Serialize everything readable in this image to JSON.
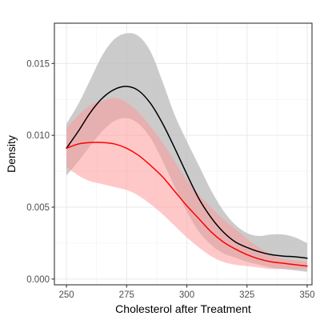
{
  "chart_data": {
    "type": "line",
    "title": "",
    "xlabel": "Cholesterol after Treatment",
    "ylabel": "Density",
    "xlim": [
      245,
      352
    ],
    "ylim": [
      -0.0004,
      0.0178
    ],
    "x_ticks": [
      250,
      275,
      300,
      325,
      350
    ],
    "x_tick_labels": [
      "250",
      "275",
      "300",
      "325",
      "350"
    ],
    "y_ticks": [
      0.0,
      0.005,
      0.01,
      0.015
    ],
    "y_tick_labels": [
      "0.000",
      "0.005",
      "0.010",
      "0.015"
    ],
    "grid": true,
    "legend": "none",
    "series": [
      {
        "color": "#000000",
        "band_color": "#bebebe",
        "x": [
          250,
          255,
          260,
          265,
          270,
          275,
          280,
          285,
          290,
          295,
          300,
          305,
          310,
          315,
          320,
          325,
          330,
          335,
          340,
          345,
          350
        ],
        "y": [
          0.0091,
          0.0103,
          0.0116,
          0.0126,
          0.0132,
          0.0134,
          0.0131,
          0.0122,
          0.0108,
          0.0091,
          0.0073,
          0.0056,
          0.0043,
          0.0033,
          0.0026,
          0.0022,
          0.0019,
          0.0017,
          0.0016,
          0.00155,
          0.00145
        ],
        "lower": [
          0.0072,
          0.0082,
          0.0093,
          0.0103,
          0.011,
          0.0112,
          0.0108,
          0.0098,
          0.0082,
          0.0064,
          0.0047,
          0.0033,
          0.0024,
          0.0018,
          0.0015,
          0.0012,
          0.001,
          0.0008,
          0.0007,
          0.0006,
          0.0005
        ],
        "upper": [
          0.0108,
          0.0122,
          0.0139,
          0.0156,
          0.0167,
          0.0171,
          0.0169,
          0.0158,
          0.0137,
          0.0114,
          0.0096,
          0.0079,
          0.0062,
          0.0048,
          0.0038,
          0.0032,
          0.003,
          0.0031,
          0.0031,
          0.0029,
          0.0025
        ]
      },
      {
        "color": "#ff0000",
        "band_color": "#ff9a9a",
        "x": [
          250,
          255,
          260,
          265,
          270,
          275,
          280,
          285,
          290,
          295,
          300,
          305,
          310,
          315,
          320,
          325,
          330,
          335,
          340,
          345,
          350
        ],
        "y": [
          0.0091,
          0.0094,
          0.0095,
          0.0095,
          0.0094,
          0.0091,
          0.0086,
          0.0079,
          0.0071,
          0.0061,
          0.0051,
          0.0042,
          0.0033,
          0.0026,
          0.0021,
          0.0017,
          0.0014,
          0.0012,
          0.0011,
          0.001,
          0.0009
        ],
        "lower": [
          0.0078,
          0.0072,
          0.0068,
          0.0066,
          0.0064,
          0.0062,
          0.0058,
          0.0052,
          0.0045,
          0.0037,
          0.0029,
          0.0022,
          0.0016,
          0.0012,
          0.001,
          0.0009,
          0.0008,
          0.0007,
          0.0007,
          0.0007,
          0.0007
        ],
        "upper": [
          0.0105,
          0.0114,
          0.0121,
          0.0124,
          0.0126,
          0.0123,
          0.0116,
          0.0106,
          0.0095,
          0.0082,
          0.0069,
          0.0059,
          0.005,
          0.0042,
          0.0035,
          0.0028,
          0.0022,
          0.0017,
          0.0014,
          0.0013,
          0.0012
        ]
      }
    ]
  }
}
